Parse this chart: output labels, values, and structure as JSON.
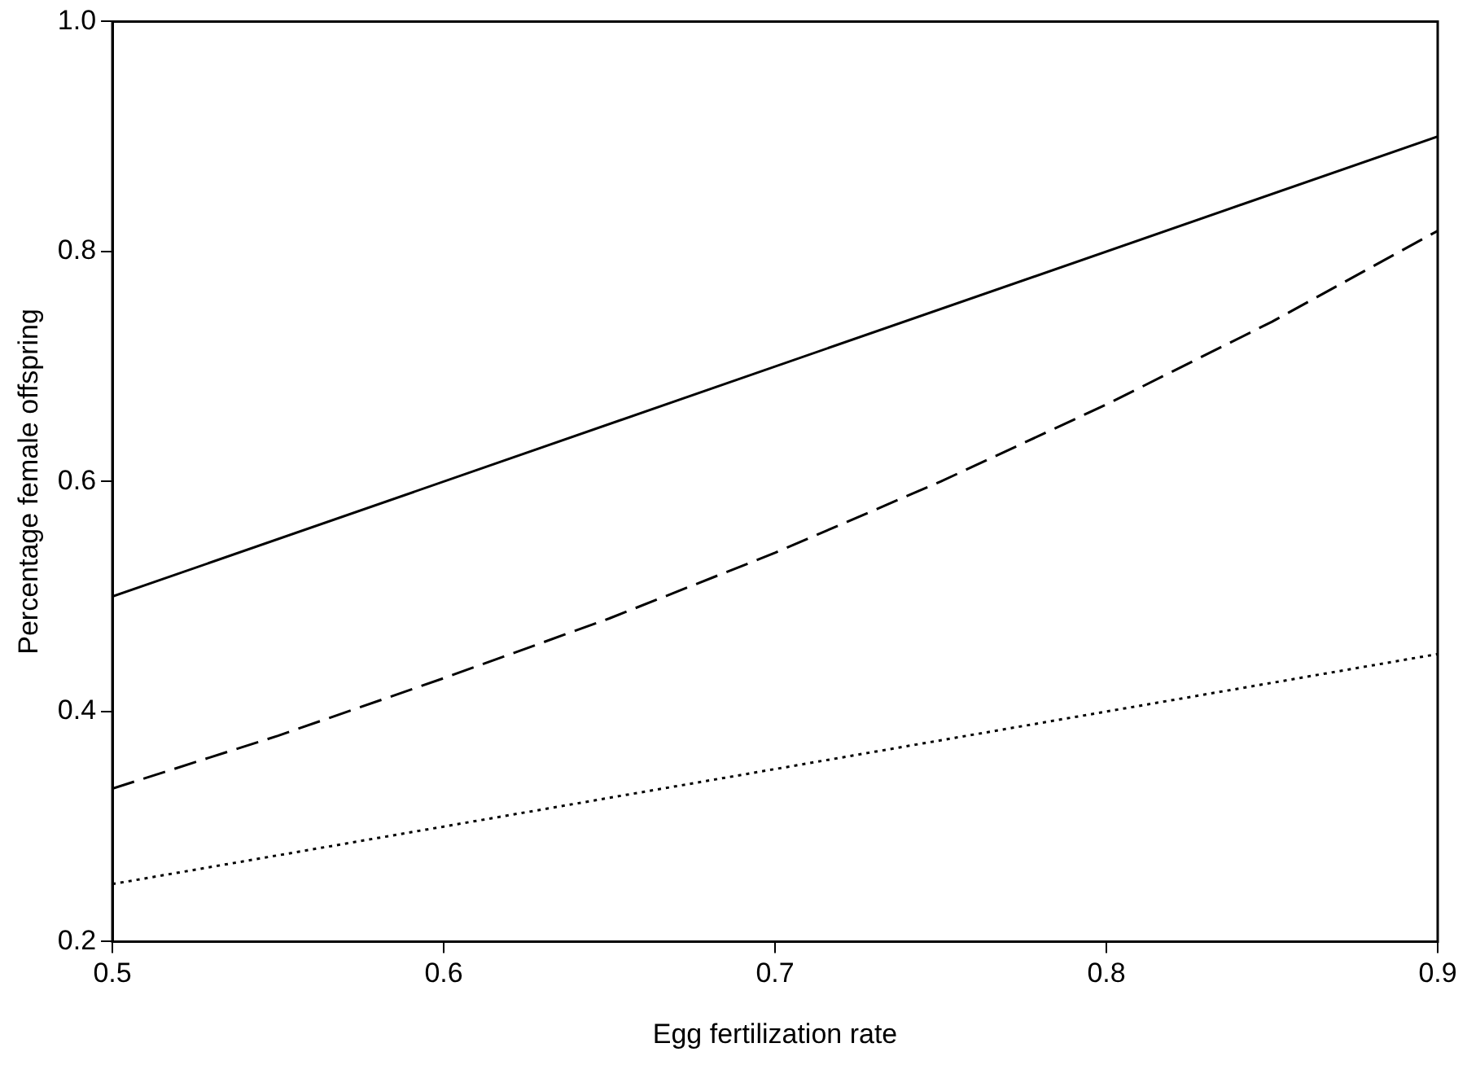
{
  "chart_data": {
    "type": "line",
    "xlabel": "Egg fertilization rate",
    "ylabel": "Percentage female offspring",
    "xlim": [
      0.5,
      0.9
    ],
    "xticks": [
      0.5,
      0.6,
      0.7,
      0.8,
      0.9
    ],
    "ylim": [
      0.2,
      1.0
    ],
    "yticks": [
      0.2,
      0.4,
      0.6,
      0.8,
      {
        "value": 1.0,
        "label": "1.0"
      }
    ],
    "grid": false,
    "legend": false,
    "marker": "none",
    "series": [
      {
        "color": "#000000",
        "line_style": "solid",
        "x": [
          0.5,
          0.9
        ],
        "values": [
          0.5,
          0.9
        ]
      },
      {
        "color": "#000000",
        "line_style": "dashed",
        "x": [
          0.5,
          0.55,
          0.6,
          0.65,
          0.7,
          0.75,
          0.8,
          0.85,
          0.9
        ],
        "values": [
          0.333,
          0.379,
          0.429,
          0.481,
          0.538,
          0.6,
          0.667,
          0.739,
          0.818
        ]
      },
      {
        "color": "#000000",
        "line_style": "dotted",
        "x": [
          0.5,
          0.6,
          0.7,
          0.8,
          0.9
        ],
        "values": [
          0.25,
          0.3,
          0.35,
          0.4,
          0.45
        ]
      }
    ]
  }
}
